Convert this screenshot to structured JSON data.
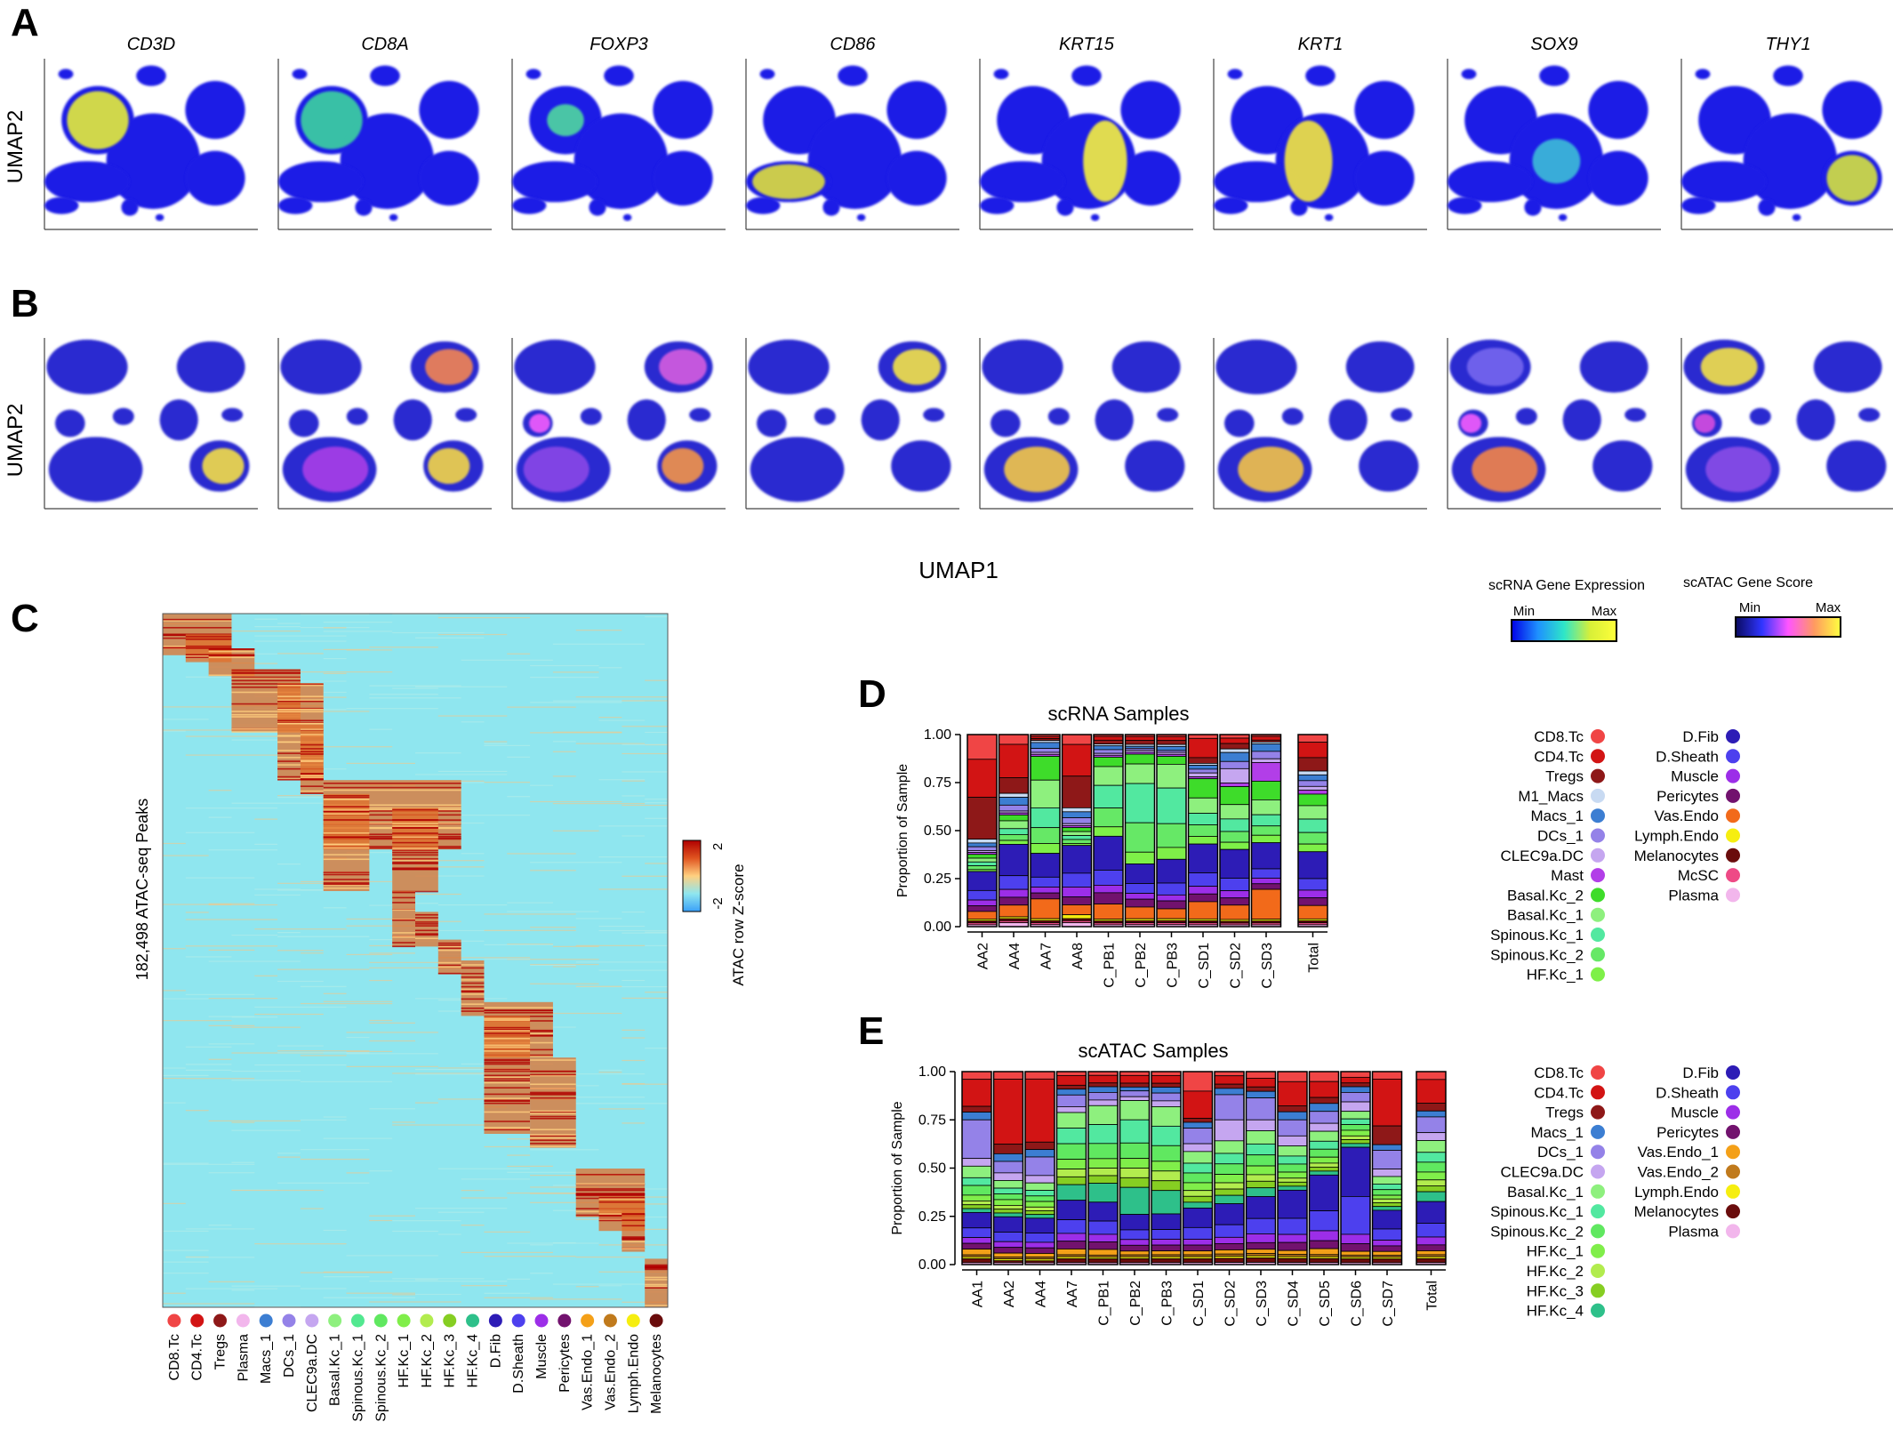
{
  "panel_letters": {
    "a": "A",
    "b": "B",
    "c": "C",
    "d": "D",
    "e": "E"
  },
  "genes": [
    "CD3D",
    "CD8A",
    "FOXP3",
    "CD86",
    "KRT15",
    "KRT1",
    "SOX9",
    "THY1"
  ],
  "umap_axes": {
    "y_label": "UMAP2",
    "x_label": "UMAP1"
  },
  "legend_rna": {
    "title": "scRNA Gene Expression",
    "min": "Min",
    "max": "Max",
    "colors": [
      "#0000e6",
      "#1e90ff",
      "#2ee6c8",
      "#d8ef38",
      "#ffff3a"
    ]
  },
  "legend_atac": {
    "title": "scATAC Gene Score",
    "min": "Min",
    "max": "Max",
    "colors": [
      "#0a0a60",
      "#2f35ff",
      "#ff55ff",
      "#ff9a60",
      "#ffff40"
    ]
  },
  "heatmap": {
    "y_label": "182,498 ATAC-seq Peaks",
    "colorbar_title": "ATAC row Z-score",
    "colorbar_max": "2",
    "colorbar_min": "-2",
    "colors": [
      "#3aa0f8",
      "#8fe6ef",
      "#ffd080",
      "#e05420",
      "#b00000"
    ],
    "columns": [
      {
        "label": "CD8.Tc",
        "color": "#f04545"
      },
      {
        "label": "CD4.Tc",
        "color": "#d21414"
      },
      {
        "label": "Tregs",
        "color": "#8e1818"
      },
      {
        "label": "Plasma",
        "color": "#f2b6ec"
      },
      {
        "label": "Macs_1",
        "color": "#3c7ed2"
      },
      {
        "label": "DCs_1",
        "color": "#9482e8"
      },
      {
        "label": "CLEC9a.DC",
        "color": "#c5a6f0"
      },
      {
        "label": "Basal.Kc_1",
        "color": "#8ef07e"
      },
      {
        "label": "Spinous.Kc_1",
        "color": "#52e890"
      },
      {
        "label": "Spinous.Kc_2",
        "color": "#60e860"
      },
      {
        "label": "HF.Kc_1",
        "color": "#80ee4a"
      },
      {
        "label": "HF.Kc_2",
        "color": "#b2ec4e"
      },
      {
        "label": "HF.Kc_3",
        "color": "#86ce22"
      },
      {
        "label": "HF.Kc_4",
        "color": "#2ec08a"
      },
      {
        "label": "D.Fib",
        "color": "#2d1cb6"
      },
      {
        "label": "D.Sheath",
        "color": "#4d40ee"
      },
      {
        "label": "Muscle",
        "color": "#9c2ee8"
      },
      {
        "label": "Pericytes",
        "color": "#72126e"
      },
      {
        "label": "Vas.Endo_1",
        "color": "#f4a018"
      },
      {
        "label": "Vas.Endo_2",
        "color": "#c07a1c"
      },
      {
        "label": "Lymph.Endo",
        "color": "#f6ee10"
      },
      {
        "label": "Melanocytes",
        "color": "#6a0c0c"
      }
    ]
  },
  "chart_data": [
    {
      "type": "bar",
      "stacked": true,
      "title": "scRNA Samples",
      "xlabel": "",
      "ylabel": "Proportion of Sample",
      "ylim": [
        0,
        1
      ],
      "yticks": [
        "0.00",
        "0.25",
        "0.50",
        "0.75",
        "1.00"
      ],
      "categories": [
        "AA2",
        "AA4",
        "AA7",
        "AA8",
        "C_PB1",
        "C_PB2",
        "C_PB3",
        "C_SD1",
        "C_SD2",
        "C_SD3",
        "Total"
      ],
      "series": [
        {
          "name": "CD8.Tc",
          "color": "#f04545",
          "values": [
            0.13,
            0.05,
            0.01,
            0.05,
            0.01,
            0.01,
            0.01,
            0.02,
            0.02,
            0.01,
            0.04
          ]
        },
        {
          "name": "CD4.Tc",
          "color": "#d21414",
          "values": [
            0.2,
            0.17,
            0.01,
            0.16,
            0.02,
            0.02,
            0.02,
            0.1,
            0.03,
            0.02,
            0.08
          ]
        },
        {
          "name": "Tregs",
          "color": "#8e1818",
          "values": [
            0.22,
            0.08,
            0.01,
            0.16,
            0.02,
            0.02,
            0.02,
            0.03,
            0.03,
            0.01,
            0.07
          ]
        },
        {
          "name": "M1_Macs",
          "color": "#c8daf2",
          "values": [
            0.02,
            0.02,
            0.01,
            0.02,
            0.01,
            0.01,
            0.01,
            0.01,
            0.02,
            0.01,
            0.02
          ]
        },
        {
          "name": "Macs_1",
          "color": "#3c7ed2",
          "values": [
            0.02,
            0.04,
            0.03,
            0.03,
            0.02,
            0.01,
            0.02,
            0.02,
            0.05,
            0.04,
            0.03
          ]
        },
        {
          "name": "DCs_1",
          "color": "#9482e8",
          "values": [
            0.02,
            0.03,
            0.02,
            0.03,
            0.02,
            0.01,
            0.01,
            0.02,
            0.04,
            0.04,
            0.03
          ]
        },
        {
          "name": "CLEC9a.DC",
          "color": "#c5a6f0",
          "values": [
            0.01,
            0.01,
            0.01,
            0.01,
            0.01,
            0.01,
            0.01,
            0.02,
            0.08,
            0.02,
            0.02
          ]
        },
        {
          "name": "Mast",
          "color": "#b23ee8",
          "values": [
            0.01,
            0.01,
            0.01,
            0.01,
            0.01,
            0.01,
            0.01,
            0.01,
            0.02,
            0.1,
            0.02
          ]
        },
        {
          "name": "Basal.Kc_2",
          "color": "#3edc2a",
          "values": [
            0.02,
            0.03,
            0.12,
            0.02,
            0.05,
            0.05,
            0.04,
            0.1,
            0.1,
            0.1,
            0.06
          ]
        },
        {
          "name": "Basal.Kc_1",
          "color": "#8ef07e",
          "values": [
            0.02,
            0.04,
            0.14,
            0.02,
            0.1,
            0.1,
            0.12,
            0.08,
            0.08,
            0.08,
            0.07
          ]
        },
        {
          "name": "Spinous.Kc_1",
          "color": "#52e8a0",
          "values": [
            0.02,
            0.03,
            0.1,
            0.02,
            0.12,
            0.2,
            0.18,
            0.06,
            0.07,
            0.06,
            0.07
          ]
        },
        {
          "name": "Spinous.Kc_2",
          "color": "#66e866",
          "values": [
            0.02,
            0.03,
            0.08,
            0.02,
            0.1,
            0.15,
            0.12,
            0.06,
            0.06,
            0.05,
            0.06
          ]
        },
        {
          "name": "HF.Kc_1",
          "color": "#7ef048",
          "values": [
            0.01,
            0.02,
            0.05,
            0.01,
            0.05,
            0.06,
            0.06,
            0.04,
            0.04,
            0.04,
            0.04
          ]
        },
        {
          "name": "D.Fib",
          "color": "#2d1cb6",
          "values": [
            0.1,
            0.16,
            0.12,
            0.14,
            0.18,
            0.1,
            0.12,
            0.15,
            0.16,
            0.14,
            0.14
          ]
        },
        {
          "name": "D.Sheath",
          "color": "#4d40ee",
          "values": [
            0.05,
            0.07,
            0.05,
            0.07,
            0.08,
            0.05,
            0.06,
            0.07,
            0.07,
            0.05,
            0.06
          ]
        },
        {
          "name": "Muscle",
          "color": "#9c2ee8",
          "values": [
            0.03,
            0.04,
            0.03,
            0.05,
            0.04,
            0.03,
            0.03,
            0.04,
            0.04,
            0.03,
            0.04
          ]
        },
        {
          "name": "Pericytes",
          "color": "#72126e",
          "values": [
            0.03,
            0.04,
            0.03,
            0.04,
            0.06,
            0.04,
            0.04,
            0.04,
            0.04,
            0.03,
            0.04
          ]
        },
        {
          "name": "Vas.Endo",
          "color": "#f26a1a",
          "values": [
            0.04,
            0.06,
            0.1,
            0.05,
            0.08,
            0.06,
            0.05,
            0.09,
            0.08,
            0.16,
            0.07
          ]
        },
        {
          "name": "Lymph.Endo",
          "color": "#f6ee10",
          "values": [
            0.01,
            0.01,
            0.01,
            0.02,
            0.01,
            0.01,
            0.01,
            0.01,
            0.01,
            0.01,
            0.01
          ]
        },
        {
          "name": "Melanocytes",
          "color": "#6a0c0c",
          "values": [
            0.01,
            0.01,
            0.01,
            0.01,
            0.01,
            0.01,
            0.01,
            0.01,
            0.01,
            0.01,
            0.01
          ]
        },
        {
          "name": "McSC",
          "color": "#ee4a86",
          "values": [
            0.01,
            0.01,
            0.01,
            0.01,
            0.01,
            0.01,
            0.01,
            0.01,
            0.01,
            0.01,
            0.01
          ]
        },
        {
          "name": "Plasma",
          "color": "#f2b6ec",
          "values": [
            0.01,
            0.02,
            0.01,
            0.02,
            0.01,
            0.01,
            0.01,
            0.01,
            0.01,
            0.01,
            0.01
          ]
        }
      ]
    },
    {
      "type": "bar",
      "stacked": true,
      "title": "scATAC Samples",
      "xlabel": "",
      "ylabel": "Proportion of Sample",
      "ylim": [
        0,
        1
      ],
      "yticks": [
        "0.00",
        "0.25",
        "0.50",
        "0.75",
        "1.00"
      ],
      "categories": [
        "AA1",
        "AA2",
        "AA4",
        "AA7",
        "C_PB1",
        "C_PB2",
        "C_PB3",
        "C_SD1",
        "C_SD2",
        "C_SD3",
        "C_SD4",
        "C_SD5",
        "C_SD6",
        "C_SD7",
        "Total"
      ],
      "series": [
        {
          "name": "CD8.Tc",
          "color": "#f04545",
          "values": [
            0.04,
            0.04,
            0.04,
            0.02,
            0.02,
            0.02,
            0.02,
            0.1,
            0.02,
            0.03,
            0.05,
            0.05,
            0.03,
            0.04,
            0.04
          ]
        },
        {
          "name": "CD4.Tc",
          "color": "#d21414",
          "values": [
            0.14,
            0.34,
            0.34,
            0.05,
            0.04,
            0.04,
            0.04,
            0.14,
            0.04,
            0.04,
            0.12,
            0.08,
            0.03,
            0.25,
            0.12
          ]
        },
        {
          "name": "Tregs",
          "color": "#8e1818",
          "values": [
            0.03,
            0.05,
            0.04,
            0.02,
            0.02,
            0.02,
            0.02,
            0.02,
            0.02,
            0.02,
            0.03,
            0.03,
            0.02,
            0.1,
            0.04
          ]
        },
        {
          "name": "Macs_1",
          "color": "#3c7ed2",
          "values": [
            0.04,
            0.04,
            0.04,
            0.03,
            0.03,
            0.02,
            0.03,
            0.03,
            0.03,
            0.03,
            0.04,
            0.04,
            0.03,
            0.03,
            0.03
          ]
        },
        {
          "name": "DCs_1",
          "color": "#9482e8",
          "values": [
            0.2,
            0.06,
            0.1,
            0.06,
            0.04,
            0.03,
            0.04,
            0.08,
            0.12,
            0.1,
            0.08,
            0.06,
            0.05,
            0.1,
            0.08
          ]
        },
        {
          "name": "CLEC9a.DC",
          "color": "#c5a6f0",
          "values": [
            0.04,
            0.04,
            0.04,
            0.03,
            0.03,
            0.02,
            0.03,
            0.04,
            0.1,
            0.05,
            0.05,
            0.04,
            0.05,
            0.04,
            0.04
          ]
        },
        {
          "name": "Basal.Kc_1",
          "color": "#8ef07e",
          "values": [
            0.06,
            0.04,
            0.04,
            0.08,
            0.1,
            0.1,
            0.1,
            0.06,
            0.06,
            0.06,
            0.05,
            0.05,
            0.04,
            0.04,
            0.06
          ]
        },
        {
          "name": "Spinous.Kc_1",
          "color": "#52e8a0",
          "values": [
            0.04,
            0.03,
            0.03,
            0.08,
            0.1,
            0.12,
            0.1,
            0.05,
            0.05,
            0.05,
            0.04,
            0.04,
            0.03,
            0.03,
            0.05
          ]
        },
        {
          "name": "Spinous.Kc_2",
          "color": "#60e860",
          "values": [
            0.05,
            0.03,
            0.03,
            0.08,
            0.08,
            0.08,
            0.08,
            0.05,
            0.05,
            0.05,
            0.04,
            0.04,
            0.03,
            0.03,
            0.05
          ]
        },
        {
          "name": "HF.Kc_1",
          "color": "#80ee4a",
          "values": [
            0.03,
            0.03,
            0.03,
            0.05,
            0.05,
            0.05,
            0.05,
            0.04,
            0.04,
            0.04,
            0.03,
            0.03,
            0.03,
            0.02,
            0.04
          ]
        },
        {
          "name": "HF.Kc_2",
          "color": "#b2ec4e",
          "values": [
            0.02,
            0.02,
            0.02,
            0.04,
            0.04,
            0.05,
            0.05,
            0.03,
            0.03,
            0.03,
            0.02,
            0.02,
            0.02,
            0.02,
            0.03
          ]
        },
        {
          "name": "HF.Kc_3",
          "color": "#86ce22",
          "values": [
            0.02,
            0.02,
            0.02,
            0.04,
            0.04,
            0.05,
            0.05,
            0.03,
            0.03,
            0.03,
            0.02,
            0.02,
            0.02,
            0.02,
            0.03
          ]
        },
        {
          "name": "HF.Kc_4",
          "color": "#2ec08a",
          "values": [
            0.02,
            0.02,
            0.02,
            0.08,
            0.1,
            0.14,
            0.12,
            0.03,
            0.04,
            0.04,
            0.02,
            0.02,
            0.02,
            0.02,
            0.05
          ]
        },
        {
          "name": "D.Fib",
          "color": "#2d1cb6",
          "values": [
            0.08,
            0.08,
            0.08,
            0.1,
            0.1,
            0.08,
            0.08,
            0.1,
            0.1,
            0.1,
            0.14,
            0.18,
            0.26,
            0.1,
            0.11
          ]
        },
        {
          "name": "D.Sheath",
          "color": "#4d40ee",
          "values": [
            0.05,
            0.05,
            0.05,
            0.07,
            0.07,
            0.05,
            0.05,
            0.06,
            0.06,
            0.07,
            0.08,
            0.1,
            0.2,
            0.06,
            0.07
          ]
        },
        {
          "name": "Muscle",
          "color": "#9c2ee8",
          "values": [
            0.03,
            0.03,
            0.03,
            0.04,
            0.04,
            0.03,
            0.03,
            0.03,
            0.03,
            0.04,
            0.04,
            0.05,
            0.05,
            0.03,
            0.04
          ]
        },
        {
          "name": "Pericytes",
          "color": "#72126e",
          "values": [
            0.03,
            0.03,
            0.03,
            0.04,
            0.04,
            0.03,
            0.03,
            0.03,
            0.03,
            0.03,
            0.04,
            0.04,
            0.04,
            0.03,
            0.03
          ]
        },
        {
          "name": "Vas.Endo_1",
          "color": "#f4a018",
          "values": [
            0.03,
            0.02,
            0.02,
            0.03,
            0.03,
            0.02,
            0.02,
            0.02,
            0.02,
            0.02,
            0.02,
            0.03,
            0.02,
            0.02,
            0.02
          ]
        },
        {
          "name": "Vas.Endo_2",
          "color": "#c07a1c",
          "values": [
            0.01,
            0.01,
            0.01,
            0.01,
            0.01,
            0.01,
            0.01,
            0.01,
            0.01,
            0.01,
            0.01,
            0.01,
            0.01,
            0.01,
            0.01
          ]
        },
        {
          "name": "Lymph.Endo",
          "color": "#f6ee10",
          "values": [
            0.01,
            0.01,
            0.01,
            0.01,
            0.01,
            0.01,
            0.01,
            0.01,
            0.01,
            0.01,
            0.01,
            0.01,
            0.01,
            0.01,
            0.01
          ]
        },
        {
          "name": "Melanocytes",
          "color": "#6a0c0c",
          "values": [
            0.02,
            0.01,
            0.01,
            0.02,
            0.02,
            0.02,
            0.02,
            0.02,
            0.02,
            0.02,
            0.02,
            0.02,
            0.02,
            0.02,
            0.02
          ]
        },
        {
          "name": "Plasma",
          "color": "#f2b6ec",
          "values": [
            0.01,
            0.01,
            0.01,
            0.01,
            0.01,
            0.01,
            0.01,
            0.01,
            0.01,
            0.01,
            0.01,
            0.01,
            0.01,
            0.01,
            0.01
          ]
        }
      ]
    }
  ]
}
